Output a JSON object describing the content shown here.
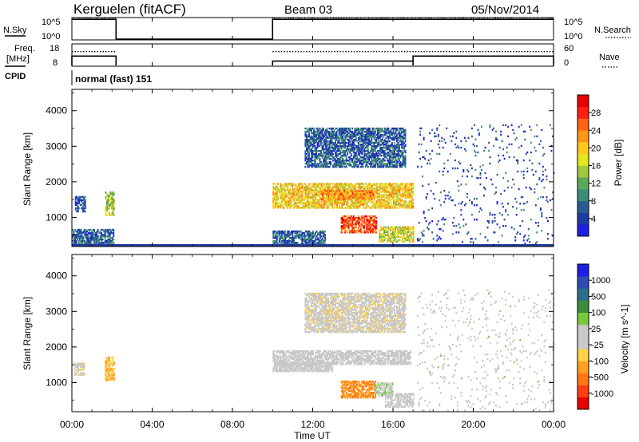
{
  "header": {
    "title": "Kerguelen (fitACF)",
    "beam": "Beam 03",
    "date": "05/Nov/2014"
  },
  "strips": {
    "nsky": {
      "label": "N.Sky",
      "ticks": [
        "10^5",
        "10^0"
      ],
      "right_label": "N.Search",
      "right_ticks": [
        "10^5",
        "10^0"
      ]
    },
    "freq": {
      "label_line1": "Freq.",
      "label_line2": "[MHz]",
      "ticks": [
        "18",
        "8"
      ],
      "right_label": "Nave",
      "right_ticks": [
        "60",
        "0"
      ]
    },
    "cpid": {
      "label": "CPID",
      "mode_text": "normal (fast) 151"
    }
  },
  "x_axis": {
    "ticks": [
      "00:00",
      "04:00",
      "08:00",
      "12:00",
      "16:00",
      "20:00",
      "00:00"
    ],
    "label": "Time UT"
  },
  "colors": {
    "power": [
      "#1e1ee6",
      "#1e3ca0",
      "#2c5c96",
      "#3c8c78",
      "#5aa85a",
      "#a0c83c",
      "#e6e61e",
      "#ffc81e",
      "#ff9616",
      "#ff6414",
      "#ff1e10",
      "#e60000"
    ],
    "velocity": [
      "#e60000",
      "#ff3c14",
      "#ff7814",
      "#ffa01e",
      "#ffd24a",
      "#c8c8c8",
      "#c8c8c8",
      "#78c83c",
      "#3c8c3c",
      "#2c6e8c",
      "#2e4cb4",
      "#1e1ee6"
    ]
  },
  "chart_data": [
    {
      "type": "line",
      "title": "",
      "panel": "N.Sky / N.Search",
      "xlabel": "Time UT",
      "x_unit": "hours UT",
      "y_scale": "log",
      "ylim": [
        1,
        100000
      ],
      "series": [
        {
          "name": "N.Sky",
          "segments": [
            {
              "x": [
                0.0,
                2.2
              ],
              "y": 60000
            },
            {
              "x": [
                2.2,
                10.0
              ],
              "y": 1
            },
            {
              "x": [
                10.0,
                24.0
              ],
              "y": 60000
            }
          ]
        }
      ]
    },
    {
      "type": "line",
      "title": "",
      "panel": "Freq. [MHz] / Nave",
      "xlabel": "Time UT",
      "x_unit": "hours UT",
      "y_left_ticks": [
        8,
        18
      ],
      "y_right_ticks": [
        0,
        60
      ],
      "series": [
        {
          "name": "Freq.",
          "segments": [
            {
              "x": [
                0.0,
                2.2
              ],
              "y": 14.5
            },
            {
              "x": [
                10.0,
                17.0
              ],
              "y": 11.0
            },
            {
              "x": [
                17.0,
                24.0
              ],
              "y": 14.5
            }
          ]
        },
        {
          "name": "Nave",
          "style": "dotted",
          "segments": [
            {
              "x": [
                0.0,
                2.2
              ],
              "y": 40
            },
            {
              "x": [
                10.0,
                24.0
              ],
              "y": 40
            }
          ]
        }
      ]
    },
    {
      "type": "heatmap",
      "title": "",
      "panel": "Power",
      "ylabel": "Slant Range [km]",
      "xlabel": "Time UT",
      "xlim": [
        0,
        24
      ],
      "ylim": [
        180,
        4600
      ],
      "y_ticks": [
        1000,
        2000,
        3000,
        4000
      ],
      "colorbar": {
        "label": "Power [dB]",
        "ticks": [
          "4",
          "8",
          "12",
          "16",
          "20",
          "24",
          "28"
        ],
        "range": [
          0,
          30
        ]
      },
      "regions": [
        {
          "t": [
            0.15,
            0.65
          ],
          "r": [
            1150,
            1600
          ],
          "level": 5
        },
        {
          "t": [
            1.65,
            2.1
          ],
          "r": [
            1050,
            1700
          ],
          "level": 14
        },
        {
          "t": [
            0.0,
            2.1
          ],
          "r": [
            180,
            640
          ],
          "level": 6
        },
        {
          "t": [
            10.0,
            17.0
          ],
          "r": [
            1250,
            1950
          ],
          "level": 18
        },
        {
          "t": [
            12.4,
            15.0
          ],
          "r": [
            1500,
            1750
          ],
          "level": 22
        },
        {
          "t": [
            13.4,
            15.2
          ],
          "r": [
            560,
            1050
          ],
          "level": 25
        },
        {
          "t": [
            15.3,
            17.0
          ],
          "r": [
            300,
            750
          ],
          "level": 16
        },
        {
          "t": [
            11.6,
            16.6
          ],
          "r": [
            2400,
            3500
          ],
          "level": 6
        },
        {
          "t": [
            17.2,
            24.0
          ],
          "r": [
            200,
            3600
          ],
          "level": 5
        },
        {
          "t": [
            10.0,
            12.6
          ],
          "r": [
            180,
            600
          ],
          "level": 6
        }
      ]
    },
    {
      "type": "heatmap",
      "title": "",
      "panel": "Velocity",
      "ylabel": "Slant Range [km]",
      "xlabel": "Time UT",
      "xlim": [
        0,
        24
      ],
      "ylim": [
        180,
        4600
      ],
      "y_ticks": [
        1000,
        2000,
        3000,
        4000
      ],
      "colorbar": {
        "label": "Velocity [m s^-1]",
        "ticks": [
          "1000",
          "500",
          "100",
          "25",
          "-25",
          "-100",
          "-500",
          "-1000"
        ],
        "range": [
          -1200,
          1200
        ]
      },
      "regions": [
        {
          "t": [
            0.1,
            0.6
          ],
          "r": [
            1200,
            1550
          ],
          "level": -150
        },
        {
          "t": [
            1.65,
            2.1
          ],
          "r": [
            1050,
            1700
          ],
          "level": -400
        },
        {
          "t": [
            10.0,
            16.9
          ],
          "r": [
            1500,
            1900
          ],
          "level": 0
        },
        {
          "t": [
            10.0,
            13.0
          ],
          "r": [
            1300,
            1550
          ],
          "level": 0
        },
        {
          "t": [
            13.4,
            15.1
          ],
          "r": [
            560,
            1050
          ],
          "level": -600
        },
        {
          "t": [
            15.1,
            16.0
          ],
          "r": [
            600,
            1000
          ],
          "level": 150
        },
        {
          "t": [
            11.6,
            16.6
          ],
          "r": [
            2400,
            3500
          ],
          "level": -120
        },
        {
          "t": [
            17.2,
            24.0
          ],
          "r": [
            200,
            3600
          ],
          "level": 80
        },
        {
          "t": [
            15.6,
            17.0
          ],
          "r": [
            300,
            700
          ],
          "level": -60
        }
      ]
    }
  ]
}
